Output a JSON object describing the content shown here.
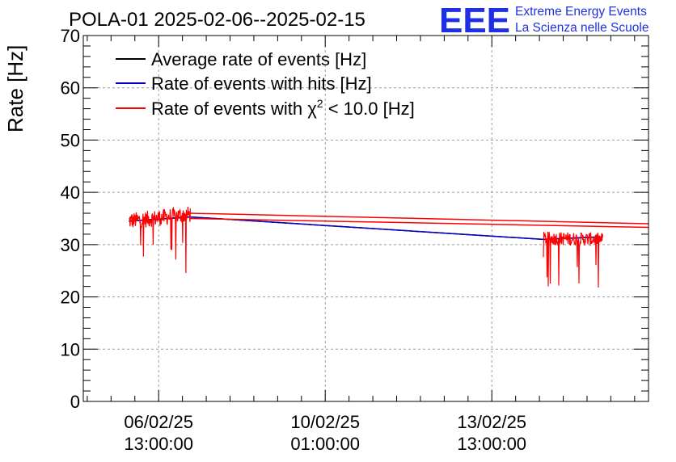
{
  "chart_data": {
    "type": "line",
    "title": "POLA-01 2025-02-06--2025-02-15",
    "ylabel": "Rate [Hz]",
    "xlabel": "",
    "ylim": [
      0,
      70
    ],
    "y_ticks": [
      0,
      10,
      20,
      30,
      40,
      50,
      60,
      70
    ],
    "x_ticks": [
      {
        "label_date": "06/02/25",
        "label_time": "13:00:00",
        "t": 0
      },
      {
        "label_date": "10/02/25",
        "label_time": "01:00:00",
        "t": 84
      },
      {
        "label_date": "13/02/25",
        "label_time": "13:00:00",
        "t": 168
      }
    ],
    "x_units": "hours since 06/02/25 13:00:00",
    "xlim": [
      -38,
      247
    ],
    "grid": true,
    "legend": {
      "placement": "top-left",
      "entries": [
        {
          "label": "Average rate of events [Hz]",
          "color": "#000000"
        },
        {
          "label": "Rate of events with hits [Hz]",
          "color": "#0000cc"
        },
        {
          "label_prefix": "Rate of events with ",
          "label_symbol": "χ",
          "label_sup": "2",
          "label_suffix": " < 10.0 [Hz]",
          "color": "#ff0000"
        }
      ]
    },
    "series": [
      {
        "name": "Average rate of events [Hz]",
        "color": "#000000",
        "x": [
          -15,
          16,
          194,
          224
        ],
        "y": [
          34.5,
          35.3,
          31.0,
          31.5
        ]
      },
      {
        "name": "Rate of events with hits [Hz]",
        "color": "#0000cc",
        "x": [
          -15,
          16,
          194,
          224
        ],
        "y": [
          34.5,
          35.3,
          31.0,
          31.5
        ]
      },
      {
        "name": "Rate of events with χ2 < 10.0 [Hz]",
        "color": "#ff0000",
        "segments": [
          {
            "x_start": -15,
            "x_end": 16,
            "mean": 34.5,
            "mean_end": 35.8,
            "spread": 1.6,
            "dip_min": 24.5
          },
          {
            "x_start": 194,
            "x_end": 224,
            "mean": 31.2,
            "mean_end": 31.0,
            "spread": 1.3,
            "dip_min": 21.5
          }
        ],
        "connectors": [
          {
            "x": [
              16,
              247
            ],
            "y": [
              36.0,
              34.0
            ]
          },
          {
            "x": [
              16,
              247
            ],
            "y": [
              35.0,
              33.3
            ]
          }
        ]
      }
    ]
  },
  "logo": {
    "mark": "EEE",
    "line1": "Extreme Energy Events",
    "line2": "La Scienza nelle Scuole",
    "color": "#1f2fe6"
  }
}
